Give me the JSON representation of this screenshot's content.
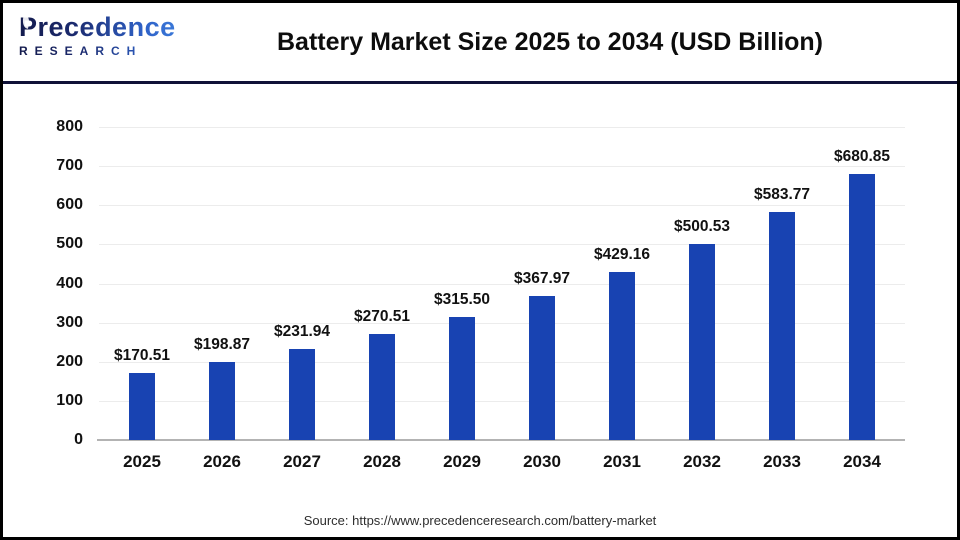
{
  "header": {
    "logo": {
      "line1": "Precedence",
      "line2": "RESEARCH"
    },
    "title": "Battery Market Size 2025 to 2034 (USD Billion)"
  },
  "footer": {
    "source": "Source: https://www.precedenceresearch.com/battery-market"
  },
  "colors": {
    "bar": "#1843b2",
    "grid": "#ececec",
    "axis": "#b3b3b3",
    "header_separator": "#101238",
    "logo_dark": "#141b4d",
    "logo_light": "#3a78d8",
    "label_text": "#111111"
  },
  "chart_data": {
    "type": "bar",
    "title": "Battery Market Size 2025 to 2034 (USD Billion)",
    "categories": [
      "2025",
      "2026",
      "2027",
      "2028",
      "2029",
      "2030",
      "2031",
      "2032",
      "2033",
      "2034"
    ],
    "values": [
      170.51,
      198.87,
      231.94,
      270.51,
      315.5,
      367.97,
      429.16,
      500.53,
      583.77,
      680.85
    ],
    "bar_labels": [
      "$170.51",
      "$198.87",
      "$231.94",
      "$270.51",
      "$315.50",
      "$367.97",
      "$429.16",
      "$500.53",
      "$583.77",
      "$680.85"
    ],
    "xlabel": "",
    "ylabel": "",
    "ylim": [
      0,
      800
    ],
    "ytick_step": 100,
    "ytick_labels": [
      "0",
      "100",
      "200",
      "300",
      "400",
      "500",
      "600",
      "700",
      "800"
    ],
    "grid": true,
    "legend": false,
    "bar_color": "#1843b2"
  }
}
